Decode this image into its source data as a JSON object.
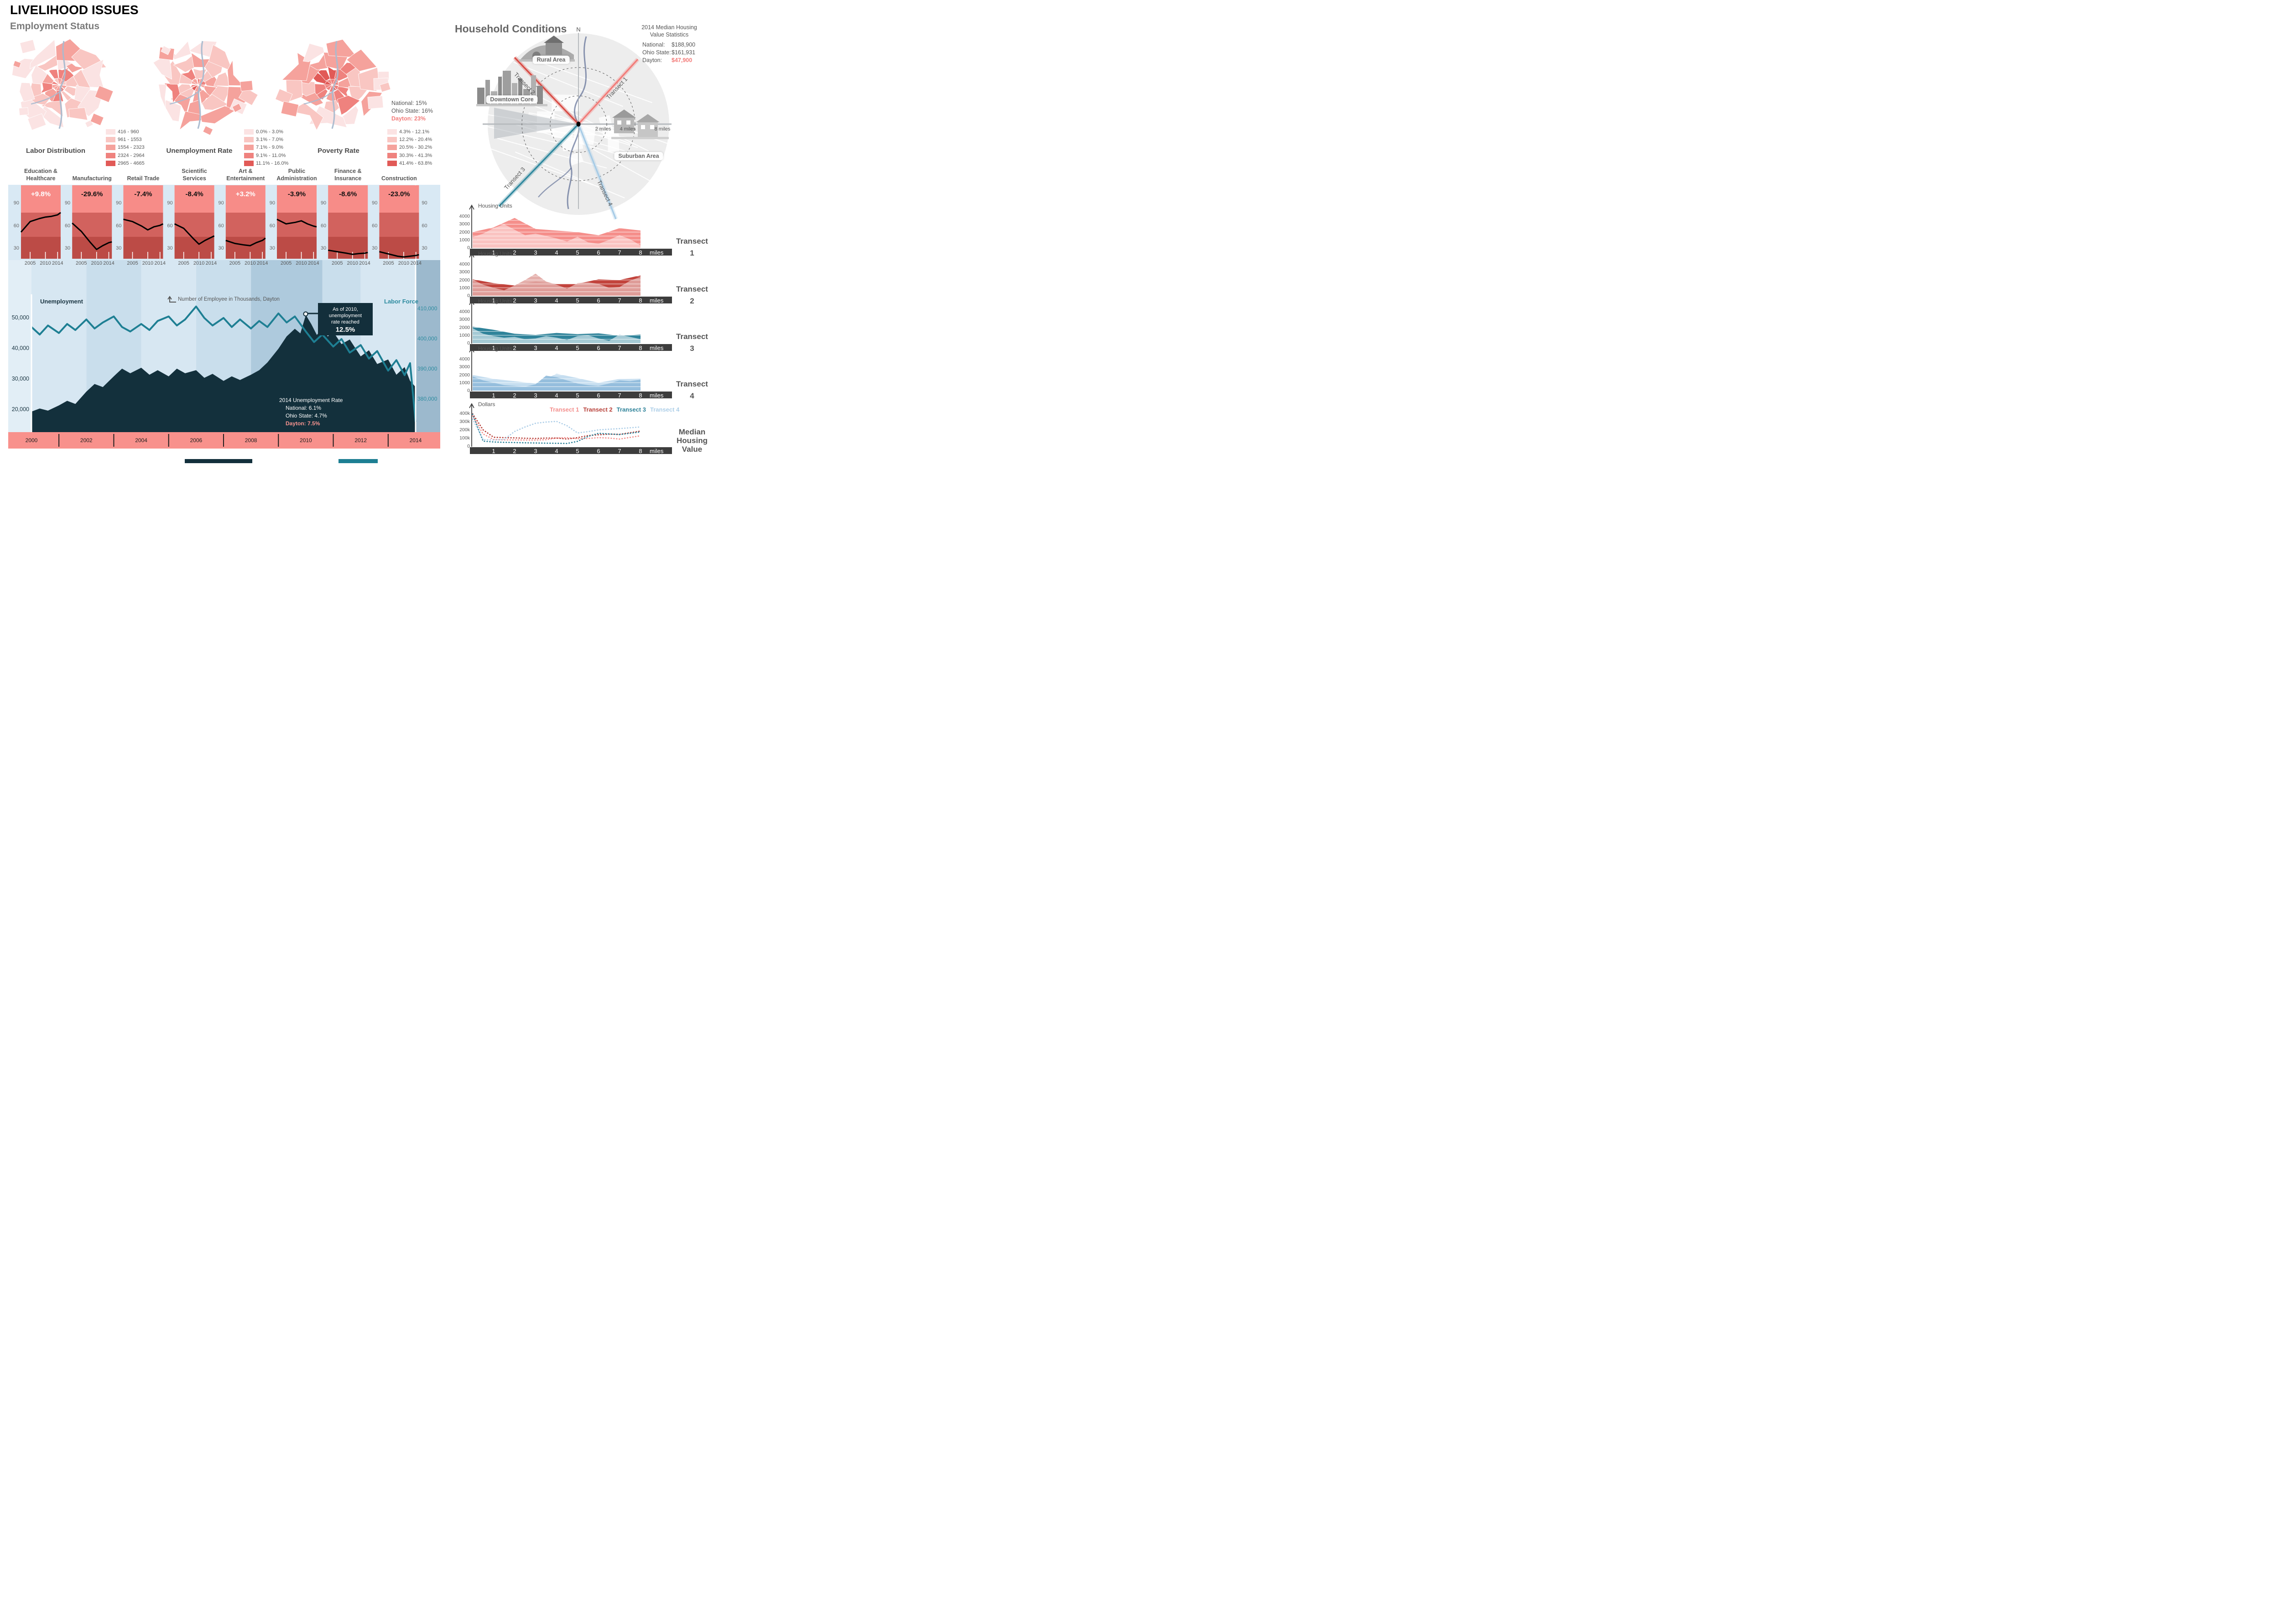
{
  "page": {
    "title": "LIVELIHOOD ISSUES",
    "subtitle": "Employment Status"
  },
  "colors": {
    "salmon": "#F4827E",
    "navy": "#13303C",
    "teal_line": "#1E7F93",
    "teal_text": "#2E8CA0",
    "year_bar": "#F8918C",
    "axis_bar": "#3D3D3D",
    "dayton_red": "#F37C7A",
    "choropleth": [
      "#FBE3E3",
      "#F9C6C2",
      "#F5A29C",
      "#EF827E",
      "#E15A57"
    ],
    "panel_bands": [
      "#F78C88",
      "#D2625E",
      "#BC4B46"
    ],
    "stripes": [
      "#D7E7F2",
      "#C9DEEC",
      "#AECADD",
      "#9CB9CD"
    ]
  },
  "maps": {
    "labor": {
      "title": "Labor Distribution",
      "legend": [
        "416 - 960",
        "961 - 1553",
        "1554 - 2323",
        "2324 - 2964",
        "2965 - 4665"
      ]
    },
    "unemployment": {
      "title": "Unemployment Rate",
      "legend": [
        "0.0% - 3.0%",
        "3.1% - 7.0%",
        "7.1% - 9.0%",
        "9.1% - 11.0%",
        "11.1% - 16.0%"
      ]
    },
    "poverty": {
      "title": "Poverty Rate",
      "legend": [
        "4.3% - 12.1%",
        "12.2% - 20.4%",
        "20.5% - 30.2%",
        "30.3% - 41.3%",
        "41.4% - 63.8%"
      ],
      "stats": [
        {
          "label": "National:",
          "value": "15%"
        },
        {
          "label": "Ohio State:",
          "value": "16%"
        },
        {
          "label": "Dayton:",
          "value": "23%"
        }
      ]
    }
  },
  "household": {
    "title": "Household Conditions",
    "stats": {
      "title_lines": [
        "2014 Median Housing",
        "Value Statistics"
      ],
      "rows": [
        {
          "label": "National:",
          "value": "$188,900"
        },
        {
          "label": "Ohio State:",
          "value": "$161,931"
        },
        {
          "label": "Dayton:",
          "value": "$47,900"
        }
      ]
    },
    "map": {
      "north": "N",
      "mile_labels": [
        "2 miles",
        "4 miles",
        "8 miles"
      ],
      "area_labels": [
        "Rural Area",
        "Downtown Core",
        "Suburban Area"
      ],
      "transect_labels": [
        "Transect 1",
        "Transect 2",
        "Transect 3",
        "Transect 4"
      ]
    }
  },
  "chart_data": {
    "industry_employment": {
      "type": "line",
      "note": "Number of Employee in Thousands, Dayton",
      "years": [
        2002,
        2005,
        2008,
        2010,
        2012,
        2014,
        2015
      ],
      "tick_years": [
        "2005",
        "2010",
        "2014"
      ],
      "y_ticks": [
        "90",
        "60",
        "30"
      ],
      "items": [
        {
          "title_lines": [
            "Education &",
            "Healthcare"
          ],
          "change": "+9.8%",
          "change_color": "#FFFFFF",
          "values": [
            52,
            66,
            70,
            72,
            73,
            75,
            78
          ]
        },
        {
          "title_lines": [
            "Manufacturing"
          ],
          "change": "-29.6%",
          "change_color": "#111111",
          "values": [
            64,
            53,
            38,
            29,
            34,
            38,
            39
          ]
        },
        {
          "title_lines": [
            "Retail Trade"
          ],
          "change": "-7.4%",
          "change_color": "#111111",
          "values": [
            69,
            66,
            60,
            55,
            59,
            61,
            63
          ]
        },
        {
          "title_lines": [
            "Scientific",
            "Services"
          ],
          "change": "-8.4%",
          "change_color": "#111111",
          "values": [
            63,
            57,
            44,
            36,
            41,
            45,
            47
          ]
        },
        {
          "title_lines": [
            "Art &",
            "Entertainment"
          ],
          "change": "+3.2%",
          "change_color": "#FFFFFF",
          "values": [
            41,
            37,
            35,
            34,
            38,
            41,
            44
          ]
        },
        {
          "title_lines": [
            "Public",
            "Administration"
          ],
          "change": "-3.9%",
          "change_color": "#111111",
          "values": [
            69,
            63,
            65,
            67,
            63,
            60,
            59
          ]
        },
        {
          "title_lines": [
            "Finance &",
            "Insurance"
          ],
          "change": "-8.6%",
          "change_color": "#111111",
          "values": [
            28,
            26,
            24,
            22.5,
            23.5,
            24,
            25
          ]
        },
        {
          "title_lines": [
            "Construction"
          ],
          "change": "-23.0%",
          "change_color": "#111111",
          "values": [
            26,
            23,
            20,
            19,
            20,
            21,
            22
          ]
        }
      ]
    },
    "unemployment_vs_labor_force": {
      "type": "area+line",
      "x_axis_years": [
        "2000",
        "2002",
        "2004",
        "2006",
        "2008",
        "2010",
        "2012",
        "2014"
      ],
      "left_axis": {
        "label": "Unemployment",
        "ticks": [
          "50,000",
          "40,000",
          "30,000",
          "20,000"
        ]
      },
      "right_axis": {
        "label": "Labor Force",
        "ticks": [
          "410,000",
          "400,000",
          "390,000",
          "380,000"
        ]
      },
      "annotation": {
        "lines": [
          "As of 2010,",
          "unemployment",
          "rate reached"
        ],
        "value": "12.5%"
      },
      "stats_2014": {
        "title": "2014 Unemployment Rate",
        "rows": [
          {
            "label": "National:",
            "value": "6.1%"
          },
          {
            "label": "Ohio State:",
            "value": "4.7%"
          },
          {
            "label": "Dayton:",
            "value": "7.5%"
          }
        ]
      },
      "unemployment_series": [
        [
          2000,
          19.5
        ],
        [
          2000.3,
          20.5
        ],
        [
          2000.6,
          19.8
        ],
        [
          2001,
          21.5
        ],
        [
          2001.3,
          23
        ],
        [
          2001.6,
          22
        ],
        [
          2002,
          26
        ],
        [
          2002.3,
          28.5
        ],
        [
          2002.6,
          27.5
        ],
        [
          2003,
          31
        ],
        [
          2003.3,
          33.5
        ],
        [
          2003.6,
          32
        ],
        [
          2004,
          33.8
        ],
        [
          2004.3,
          31.5
        ],
        [
          2004.6,
          33
        ],
        [
          2005,
          31
        ],
        [
          2005.3,
          33.5
        ],
        [
          2005.6,
          32
        ],
        [
          2006,
          33
        ],
        [
          2006.3,
          30.5
        ],
        [
          2006.6,
          31.8
        ],
        [
          2007,
          29.5
        ],
        [
          2007.3,
          31
        ],
        [
          2007.6,
          29.8
        ],
        [
          2008,
          31.5
        ],
        [
          2008.3,
          33
        ],
        [
          2008.6,
          35.5
        ],
        [
          2009,
          40
        ],
        [
          2009.3,
          44
        ],
        [
          2009.6,
          46.5
        ],
        [
          2009.8,
          45
        ],
        [
          2010,
          51
        ],
        [
          2010.2,
          48
        ],
        [
          2010.4,
          44.5
        ],
        [
          2010.6,
          46.5
        ],
        [
          2010.8,
          44
        ],
        [
          2011,
          45.5
        ],
        [
          2011.3,
          41.5
        ],
        [
          2011.6,
          43
        ],
        [
          2012,
          37.5
        ],
        [
          2012.3,
          39.5
        ],
        [
          2012.6,
          35
        ],
        [
          2013,
          36.5
        ],
        [
          2013.3,
          31.5
        ],
        [
          2013.6,
          34
        ],
        [
          2013.8,
          29.5
        ],
        [
          2014,
          27.5
        ]
      ],
      "labor_force_series": [
        [
          2000,
          404
        ],
        [
          2000.3,
          401.5
        ],
        [
          2000.6,
          404.5
        ],
        [
          2001,
          402
        ],
        [
          2001.3,
          405
        ],
        [
          2001.6,
          403
        ],
        [
          2002,
          406.5
        ],
        [
          2002.3,
          403.5
        ],
        [
          2002.6,
          405.5
        ],
        [
          2003,
          407.5
        ],
        [
          2003.3,
          404
        ],
        [
          2003.6,
          402.5
        ],
        [
          2004,
          405
        ],
        [
          2004.3,
          403
        ],
        [
          2004.6,
          406
        ],
        [
          2005,
          407.5
        ],
        [
          2005.3,
          404.5
        ],
        [
          2005.6,
          406.5
        ],
        [
          2006,
          410.8
        ],
        [
          2006.3,
          407
        ],
        [
          2006.6,
          404.5
        ],
        [
          2007,
          407
        ],
        [
          2007.3,
          404
        ],
        [
          2007.6,
          406.5
        ],
        [
          2008,
          403.5
        ],
        [
          2008.3,
          406
        ],
        [
          2008.6,
          404
        ],
        [
          2009,
          408.5
        ],
        [
          2009.3,
          405.5
        ],
        [
          2009.6,
          407.5
        ],
        [
          2010,
          402.5
        ],
        [
          2010.3,
          399
        ],
        [
          2010.6,
          401.5
        ],
        [
          2011,
          397.5
        ],
        [
          2011.3,
          400
        ],
        [
          2011.6,
          395.5
        ],
        [
          2012,
          398
        ],
        [
          2012.3,
          393.5
        ],
        [
          2012.6,
          396
        ],
        [
          2013,
          389.5
        ],
        [
          2013.3,
          393
        ],
        [
          2013.6,
          388
        ],
        [
          2013.8,
          392
        ],
        [
          2014,
          372.5
        ]
      ]
    },
    "housing_units_transects": {
      "type": "area",
      "ylabel": "Housing Units",
      "xlabel": "miles",
      "x_ticks": [
        "1",
        "2",
        "3",
        "4",
        "5",
        "6",
        "7",
        "8"
      ],
      "y_ticks": [
        "4000",
        "3000",
        "2000",
        "1000",
        "0"
      ],
      "transects": [
        {
          "name": "Transect 1",
          "name_lines": [
            "Transect",
            "1"
          ],
          "color": "#F58F8B",
          "overlay": "#FBC9C7",
          "smooth": [
            2000,
            2600,
            3800,
            2400,
            2200,
            2000,
            1600,
            2500,
            2200
          ],
          "detail": [
            1350,
            1800,
            2500,
            3000,
            2300,
            1600,
            1800,
            1500,
            1200,
            800,
            1400,
            700,
            500,
            1000,
            1600,
            1100,
            300
          ]
        },
        {
          "name": "Transect 2",
          "name_lines": [
            "Transect",
            "2"
          ],
          "color": "#C2443D",
          "overlay": "#E2A7A3",
          "smooth": [
            2100,
            1600,
            1300,
            1800,
            1500,
            1500,
            2100,
            2000,
            2600
          ],
          "detail": [
            2050,
            1400,
            1000,
            700,
            1300,
            2000,
            2800,
            1800,
            1400,
            900,
            1600,
            1700,
            1500,
            1000,
            1100,
            1900,
            2400
          ]
        },
        {
          "name": "Transect 3",
          "name_lines": [
            "Transect",
            "3"
          ],
          "color": "#2F839A",
          "overlay": "#B2D2DB",
          "smooth": [
            2100,
            1700,
            1200,
            1050,
            1300,
            1150,
            1250,
            950,
            1100
          ],
          "detail": [
            1900,
            1200,
            900,
            700,
            800,
            500,
            600,
            900,
            700,
            400,
            900,
            1000,
            600,
            300,
            1100,
            800,
            500
          ]
        },
        {
          "name": "Transect 4",
          "name_lines": [
            "Transect",
            "4"
          ],
          "color": "#C6DEF0",
          "overlay": "#8FBADA",
          "smooth": [
            2000,
            1500,
            1200,
            900,
            2150,
            1600,
            1000,
            1500,
            1550
          ],
          "detail": [
            1800,
            1300,
            1000,
            700,
            600,
            500,
            800,
            1900,
            1700,
            1300,
            900,
            700,
            600,
            900,
            1300,
            1200,
            1400
          ]
        }
      ]
    },
    "median_housing_value": {
      "type": "line",
      "ylabel": "Dollars",
      "y_ticks": [
        "400k",
        "300k",
        "200k",
        "100k",
        "0"
      ],
      "x_ticks": [
        "1",
        "2",
        "3",
        "4",
        "5",
        "6",
        "7",
        "8"
      ],
      "xlabel": "miles",
      "label_lines": [
        "Median",
        "Housing",
        "Value"
      ],
      "series": [
        {
          "name": "Transect 1",
          "color": "#F4908E",
          "values_k": [
            370,
            150,
            82,
            78,
            78,
            76,
            76,
            80,
            100,
            105,
            92,
            95,
            105,
            100,
            88,
            108,
            128
          ]
        },
        {
          "name": "Transect 2",
          "color": "#B8413A",
          "values_k": [
            395,
            200,
            110,
            105,
            102,
            98,
            95,
            100,
            100,
            88,
            105,
            130,
            140,
            148,
            145,
            165,
            185
          ]
        },
        {
          "name": "Transect 3",
          "color": "#2F839A",
          "values_k": [
            390,
            62,
            52,
            48,
            45,
            42,
            40,
            38,
            36,
            34,
            60,
            120,
            158,
            150,
            143,
            158,
            175
          ]
        },
        {
          "name": "Transect 4",
          "color": "#AECFE8",
          "values_k": [
            330,
            80,
            76,
            82,
            180,
            235,
            280,
            295,
            303,
            250,
            162,
            178,
            200,
            208,
            215,
            225,
            235
          ]
        }
      ]
    }
  }
}
